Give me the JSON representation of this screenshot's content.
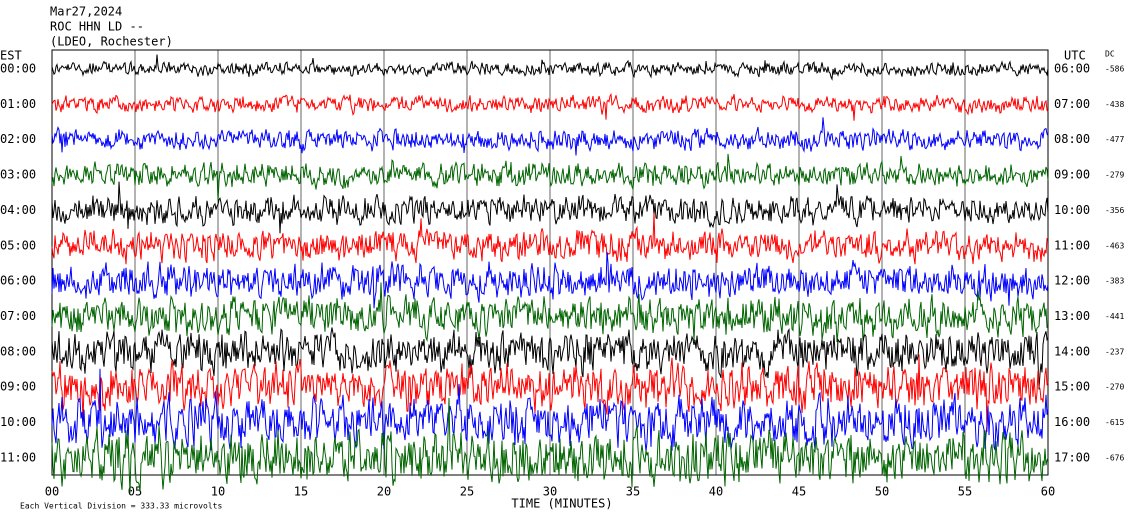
{
  "chart_data": {
    "type": "helicorder",
    "title_lines": [
      "Mar27,2024",
      "ROC HHN LD --",
      "(LDEO, Rochester)"
    ],
    "left_axis_label": "EST",
    "right_axis_label": "UTC",
    "dc_label": "DC",
    "x_label": "TIME (MINUTES)",
    "footnote": "Each Vertical Division = 333.33 microvolts",
    "xlim": [
      0,
      60
    ],
    "xticks": [
      {
        "value": 0,
        "label": "00"
      },
      {
        "value": 5,
        "label": "05"
      },
      10,
      15,
      20,
      25,
      30,
      35,
      40,
      45,
      50,
      55,
      60
    ],
    "grid": true,
    "rows": [
      {
        "est": "00:00",
        "utc": "06:00",
        "dc": -586,
        "color": "#000000"
      },
      {
        "est": "01:00",
        "utc": "07:00",
        "dc": -438,
        "color": "#ff0000"
      },
      {
        "est": "02:00",
        "utc": "08:00",
        "dc": -477,
        "color": "#0000ff"
      },
      {
        "est": "03:00",
        "utc": "09:00",
        "dc": -279,
        "color": "#006400"
      },
      {
        "est": "04:00",
        "utc": "10:00",
        "dc": -356,
        "color": "#000000"
      },
      {
        "est": "05:00",
        "utc": "11:00",
        "dc": -463,
        "color": "#ff0000"
      },
      {
        "est": "06:00",
        "utc": "12:00",
        "dc": -383,
        "color": "#0000ff"
      },
      {
        "est": "07:00",
        "utc": "13:00",
        "dc": -441,
        "color": "#006400"
      },
      {
        "est": "08:00",
        "utc": "14:00",
        "dc": -237,
        "color": "#000000"
      },
      {
        "est": "09:00",
        "utc": "15:00",
        "dc": -270,
        "color": "#ff0000"
      },
      {
        "est": "10:00",
        "utc": "16:00",
        "dc": -615,
        "color": "#0000ff"
      },
      {
        "est": "11:00",
        "utc": "17:00",
        "dc": -676,
        "color": "#006400"
      }
    ]
  }
}
